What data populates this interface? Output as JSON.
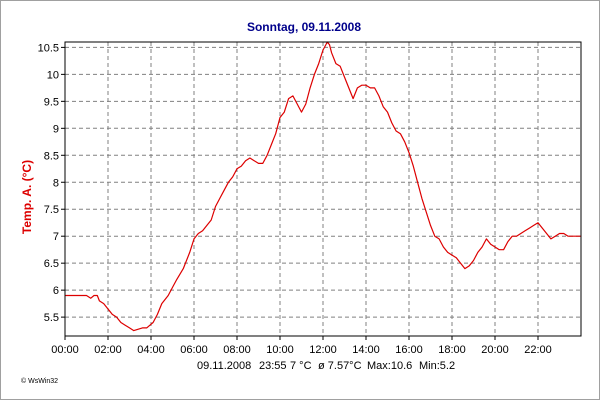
{
  "chart_data": {
    "type": "line",
    "title": "Sonntag, 09.11.2008",
    "xlabel": "",
    "ylabel": "Temp. A.  (°C)",
    "xlim": [
      0,
      24
    ],
    "ylim": [
      5.15,
      10.6
    ],
    "grid": true,
    "x_ticks": [
      0,
      2,
      4,
      6,
      8,
      10,
      12,
      14,
      16,
      18,
      20,
      22
    ],
    "x_tick_labels": [
      "00:00",
      "02:00",
      "04:00",
      "06:00",
      "08:00",
      "10:00",
      "12:00",
      "14:00",
      "16:00",
      "18:00",
      "20:00",
      "22:00"
    ],
    "y_ticks": [
      5.5,
      6,
      6.5,
      7,
      7.5,
      8,
      8.5,
      9,
      9.5,
      10,
      10.5
    ],
    "y_tick_labels": [
      "5.5",
      "6",
      "6.5",
      "7",
      "7.5",
      "8",
      "8.5",
      "9",
      "9.5",
      "10",
      "10.5"
    ],
    "series": [
      {
        "name": "Temp. A.",
        "color": "#dd0000",
        "x": [
          0,
          0.5,
          1.0,
          1.2,
          1.35,
          1.5,
          1.6,
          1.8,
          2.0,
          2.2,
          2.4,
          2.6,
          2.8,
          3.0,
          3.2,
          3.6,
          3.8,
          3.95,
          4.1,
          4.3,
          4.5,
          4.8,
          5.0,
          5.2,
          5.5,
          5.8,
          6.0,
          6.2,
          6.4,
          6.6,
          6.8,
          7.0,
          7.2,
          7.4,
          7.6,
          7.8,
          8.0,
          8.2,
          8.4,
          8.6,
          8.8,
          9.0,
          9.2,
          9.4,
          9.6,
          9.8,
          10.0,
          10.2,
          10.4,
          10.6,
          10.8,
          11.0,
          11.2,
          11.4,
          11.6,
          11.8,
          12.0,
          12.2,
          12.3,
          12.4,
          12.6,
          12.8,
          13.0,
          13.2,
          13.4,
          13.6,
          13.8,
          14.0,
          14.2,
          14.4,
          14.6,
          14.8,
          15.0,
          15.2,
          15.4,
          15.6,
          15.8,
          16.0,
          16.2,
          16.4,
          16.6,
          16.8,
          17.0,
          17.2,
          17.4,
          17.6,
          17.8,
          18.0,
          18.2,
          18.4,
          18.6,
          18.8,
          19.0,
          19.2,
          19.4,
          19.6,
          19.8,
          20.0,
          20.2,
          20.4,
          20.6,
          20.8,
          21.0,
          21.2,
          21.4,
          21.6,
          21.8,
          22.0,
          22.2,
          22.4,
          22.6,
          22.8,
          23.0,
          23.2,
          23.4,
          23.6,
          23.8,
          24.0
        ],
        "values": [
          5.9,
          5.9,
          5.9,
          5.85,
          5.9,
          5.9,
          5.8,
          5.75,
          5.65,
          5.55,
          5.5,
          5.4,
          5.35,
          5.3,
          5.25,
          5.3,
          5.3,
          5.35,
          5.4,
          5.55,
          5.75,
          5.9,
          6.05,
          6.2,
          6.4,
          6.7,
          6.95,
          7.05,
          7.1,
          7.2,
          7.3,
          7.55,
          7.7,
          7.85,
          8.0,
          8.1,
          8.25,
          8.3,
          8.4,
          8.45,
          8.4,
          8.35,
          8.35,
          8.5,
          8.7,
          8.9,
          9.2,
          9.3,
          9.55,
          9.6,
          9.45,
          9.3,
          9.45,
          9.75,
          10.0,
          10.2,
          10.45,
          10.6,
          10.55,
          10.4,
          10.2,
          10.15,
          9.95,
          9.75,
          9.55,
          9.75,
          9.8,
          9.8,
          9.75,
          9.75,
          9.6,
          9.4,
          9.3,
          9.1,
          8.95,
          8.9,
          8.75,
          8.55,
          8.3,
          8.0,
          7.7,
          7.45,
          7.2,
          7.0,
          6.95,
          6.8,
          6.7,
          6.65,
          6.6,
          6.5,
          6.4,
          6.45,
          6.55,
          6.7,
          6.8,
          6.95,
          6.85,
          6.8,
          6.75,
          6.75,
          6.9,
          7.0,
          7.0,
          7.05,
          7.1,
          7.15,
          7.2,
          7.25,
          7.15,
          7.05,
          6.95,
          7.0,
          7.05,
          7.05,
          7.0,
          7.0,
          7.0,
          7.0
        ]
      }
    ],
    "footer": {
      "date": "09.11.2008",
      "time": "23:55",
      "current": "7 °C",
      "avg": "ø 7.57°C",
      "max": "Max:10.6",
      "min": "Min:5.2"
    },
    "credit": "© WsWin32",
    "colors": {
      "title": "#00008b",
      "axis_label": "#dd0000",
      "line": "#dd0000",
      "grid": "#808080",
      "axis": "#000000"
    }
  }
}
